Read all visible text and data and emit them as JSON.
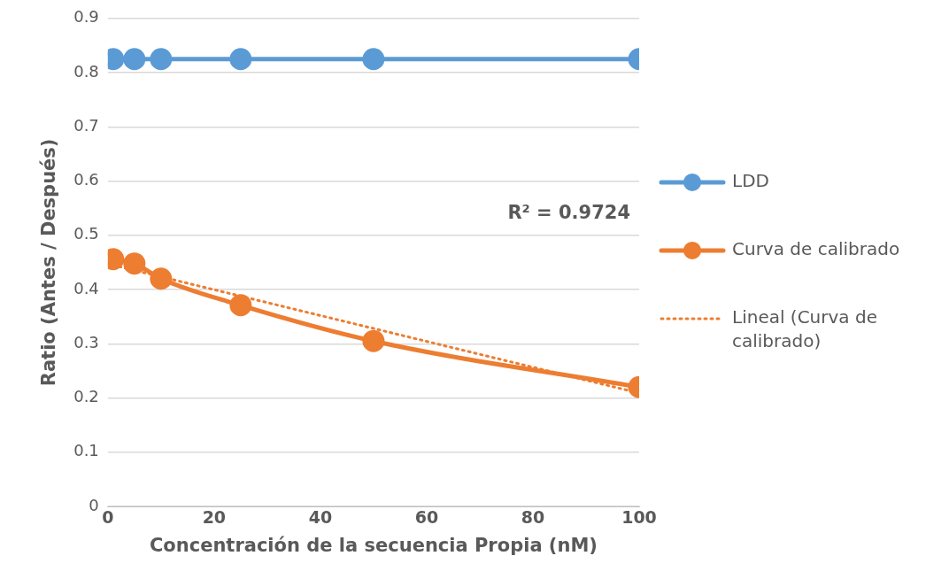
{
  "chart_data": {
    "type": "line",
    "xlabel": "Concentración de la secuencia Propia (nM)",
    "ylabel": "Ratio (Antes / Después)",
    "x": [
      1,
      5,
      10,
      25,
      50,
      100
    ],
    "series": [
      {
        "name": "LDD",
        "color": "#5b9bd5",
        "values": [
          0.825,
          0.825,
          0.825,
          0.825,
          0.825,
          0.825
        ],
        "marker": "circle",
        "line_style": "solid"
      },
      {
        "name": "Curva de calibrado",
        "color": "#ed7d31",
        "values": [
          0.456,
          0.448,
          0.42,
          0.371,
          0.305,
          0.22
        ],
        "marker": "circle",
        "line_style": "solid"
      },
      {
        "name": "Lineal (Curva de calibrado)",
        "color": "#ed7d31",
        "x": [
          1,
          100
        ],
        "values": [
          0.445,
          0.209
        ],
        "marker": "none",
        "line_style": "dotted"
      }
    ],
    "annotations": [
      "R² = 0.9724"
    ],
    "xlim": [
      0,
      100
    ],
    "xticks": [
      0,
      20,
      40,
      60,
      80,
      100
    ],
    "ylim": [
      0,
      0.9
    ],
    "yticks": [
      0,
      0.1,
      0.2,
      0.3,
      0.4,
      0.5,
      0.6,
      0.7,
      0.8,
      0.9
    ],
    "grid": "y",
    "legend": "right"
  }
}
